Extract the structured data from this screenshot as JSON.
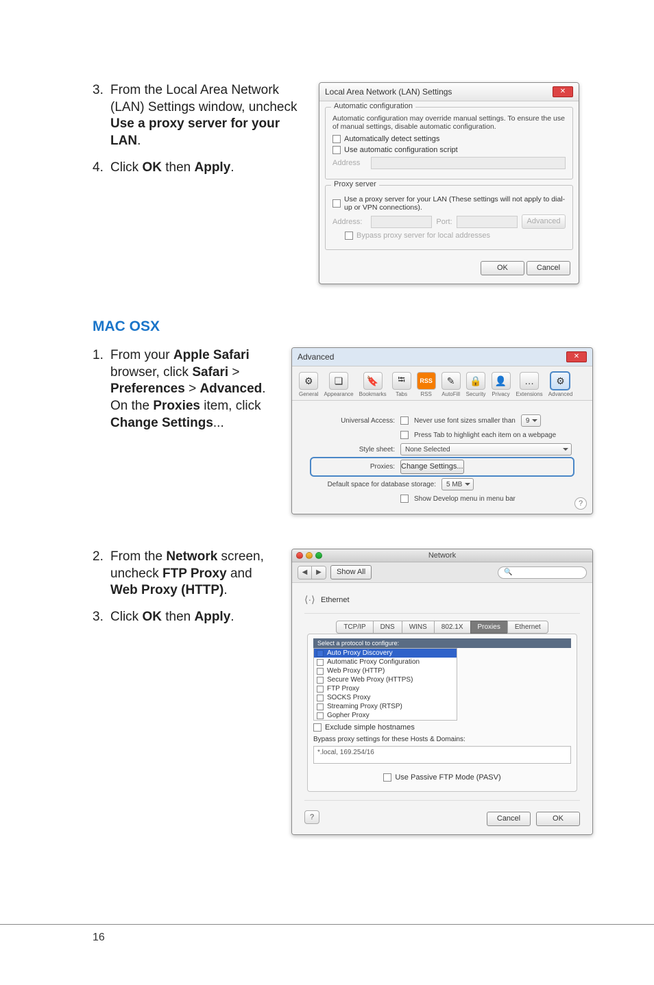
{
  "steps_ie": {
    "s3": {
      "num": "3.",
      "a": "From the Local Area Network (LAN) Settings window, uncheck ",
      "b": "Use a proxy server for your LAN",
      "c": "."
    },
    "s4": {
      "num": "4.",
      "a": "Click ",
      "b1": "OK",
      "mid": " then ",
      "b2": "Apply",
      "c": "."
    }
  },
  "mac_header": "MAC OSX",
  "steps_mac_a": {
    "s1": {
      "num": "1.",
      "a": "From your ",
      "b1": "Apple Safari",
      "a2": " browser, click ",
      "b2": "Safari",
      "gt": " > ",
      "b3": "Preferences",
      "gt2": " > ",
      "b4": "Advanced",
      "a3": ". On the ",
      "b5": "Proxies",
      "a4": " item, click ",
      "b6": "Change Settings",
      "ell": "..."
    }
  },
  "steps_mac_b": {
    "s2": {
      "num": "2.",
      "a": "From the ",
      "b1": "Network",
      "a2": " screen, uncheck ",
      "b2": "FTP Proxy",
      "a3": " and ",
      "b3": "Web Proxy (HTTP)",
      "c": "."
    },
    "s3": {
      "num": "3.",
      "a": "Click ",
      "b1": "OK",
      "mid": " then ",
      "b2": "Apply",
      "c": "."
    }
  },
  "lan_dialog": {
    "title": "Local Area Network (LAN) Settings",
    "auto_group": "Automatic configuration",
    "auto_desc": "Automatic configuration may override manual settings. To ensure the use of manual settings, disable automatic configuration.",
    "auto_detect": "Automatically detect settings",
    "auto_script": "Use automatic configuration script",
    "address_lbl": "Address",
    "proxy_group": "Proxy server",
    "proxy_desc": "Use a proxy server for your LAN (These settings will not apply to dial-up or VPN connections).",
    "addr_lbl": "Address:",
    "port_lbl": "Port:",
    "advanced_btn": "Advanced",
    "bypass": "Bypass proxy server for local addresses",
    "ok": "OK",
    "cancel": "Cancel"
  },
  "safari": {
    "title": "Advanced",
    "toolbar": [
      {
        "icon": "⚙",
        "label": "General"
      },
      {
        "icon": "❏",
        "label": "Appearance"
      },
      {
        "icon": "🔖",
        "label": "Bookmarks"
      },
      {
        "icon": "⭾",
        "label": "Tabs"
      },
      {
        "icon": "RSS",
        "label": "RSS",
        "rss": true
      },
      {
        "icon": "✎",
        "label": "AutoFill"
      },
      {
        "icon": "🔒",
        "label": "Security"
      },
      {
        "icon": "👤",
        "label": "Privacy"
      },
      {
        "icon": "…",
        "label": "Extensions"
      },
      {
        "icon": "⚙",
        "label": "Advanced",
        "sel": true
      }
    ],
    "ua_label": "Universal Access:",
    "ua_chk": "Never use font sizes smaller than",
    "ua_val": "9",
    "ua_tab": "Press Tab to highlight each item on a webpage",
    "style_label": "Style sheet:",
    "style_val": "None Selected",
    "proxies_label": "Proxies:",
    "change_btn": "Change Settings...",
    "storage_label": "Default space for database storage:",
    "storage_val": "5 MB",
    "show_dev": "Show Develop menu in menu bar"
  },
  "network": {
    "title": "Network",
    "show_all": "Show All",
    "search_ph": "Q",
    "device": "Ethernet",
    "tabs": [
      "TCP/IP",
      "DNS",
      "WINS",
      "802.1X",
      "Proxies",
      "Ethernet"
    ],
    "active_tab": 4,
    "select_header": "Select a protocol to configure:",
    "protocols": [
      {
        "label": "Auto Proxy Discovery",
        "checked": true,
        "selected": true
      },
      {
        "label": "Automatic Proxy Configuration",
        "checked": false
      },
      {
        "label": "Web Proxy (HTTP)",
        "checked": false
      },
      {
        "label": "Secure Web Proxy (HTTPS)",
        "checked": false
      },
      {
        "label": "FTP Proxy",
        "checked": false
      },
      {
        "label": "SOCKS Proxy",
        "checked": false
      },
      {
        "label": "Streaming Proxy (RTSP)",
        "checked": false
      },
      {
        "label": "Gopher Proxy",
        "checked": false
      }
    ],
    "exclude_chk": "Exclude simple hostnames",
    "bypass_label": "Bypass proxy settings for these Hosts & Domains:",
    "bypass_val": "*.local, 169.254/16",
    "pasv": "Use Passive FTP Mode (PASV)",
    "cancel": "Cancel",
    "ok": "OK"
  },
  "page_num": "16"
}
